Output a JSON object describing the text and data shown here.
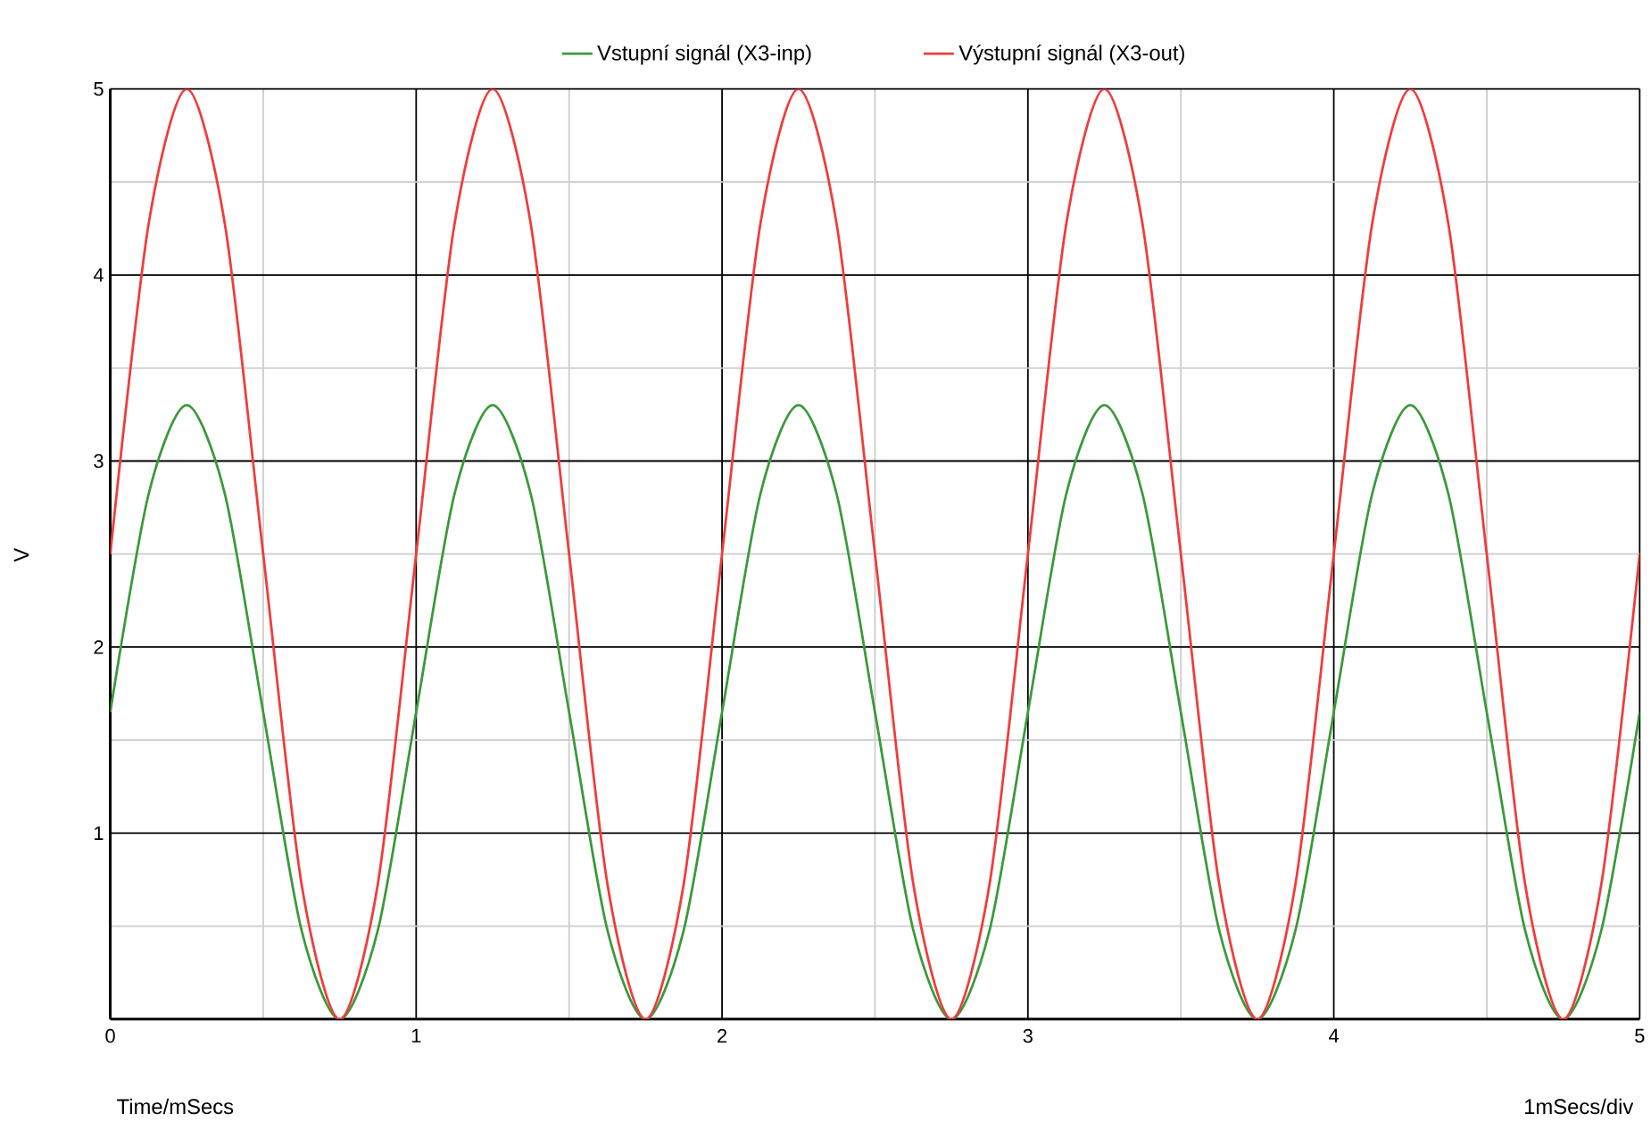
{
  "chart_data": {
    "type": "line",
    "xlabel": "Time/mSecs",
    "ylabel": "V",
    "annotations": [
      "1mSecs/div"
    ],
    "legend": "top",
    "grid": true,
    "xlim": [
      0,
      5
    ],
    "ylim": [
      0,
      5
    ],
    "xticks": [
      0,
      {
        "value": 0.5,
        "label": null
      },
      1,
      {
        "value": 1.5,
        "label": null
      },
      2,
      {
        "value": 2.5,
        "label": null
      },
      3,
      {
        "value": 3.5,
        "label": null
      },
      4,
      {
        "value": 4.5,
        "label": null
      },
      5
    ],
    "yticks": [
      {
        "value": 0,
        "label": null
      },
      {
        "value": 0.5,
        "label": null
      },
      1,
      {
        "value": 1.5,
        "label": null
      },
      2,
      {
        "value": 2.5,
        "label": null
      },
      3,
      {
        "value": 3.5,
        "label": null
      },
      4,
      {
        "value": 4.5,
        "label": null
      },
      5
    ],
    "x": [
      0,
      0.125,
      0.25,
      0.375,
      0.5,
      0.625,
      0.75,
      0.875,
      1,
      1.125,
      1.25,
      1.375,
      1.5,
      1.625,
      1.75,
      1.875,
      2,
      2.125,
      2.25,
      2.375,
      2.5,
      2.625,
      2.75,
      2.875,
      3,
      3.125,
      3.25,
      3.375,
      3.5,
      3.625,
      3.75,
      3.875,
      4,
      4.125,
      4.25,
      4.375,
      4.5,
      4.625,
      4.75,
      4.875,
      5
    ],
    "series": [
      {
        "name": "Vstupní signál (X3-inp)",
        "color": "#3a9a3a",
        "values": [
          1.65,
          2.82,
          3.3,
          2.82,
          1.65,
          0.48,
          0,
          0.48,
          1.65,
          2.82,
          3.3,
          2.82,
          1.65,
          0.48,
          0,
          0.48,
          1.65,
          2.82,
          3.3,
          2.82,
          1.65,
          0.48,
          0,
          0.48,
          1.65,
          2.82,
          3.3,
          2.82,
          1.65,
          0.48,
          0,
          0.48,
          1.65,
          2.82,
          3.3,
          2.82,
          1.65,
          0.48,
          0,
          0.48,
          1.65
        ]
      },
      {
        "name": "Výstupní signál (X3-out)",
        "color": "#f03c3c",
        "values": [
          2.5,
          4.27,
          5,
          4.27,
          2.5,
          0.73,
          0,
          0.73,
          2.5,
          4.27,
          5,
          4.27,
          2.5,
          0.73,
          0,
          0.73,
          2.5,
          4.27,
          5,
          4.27,
          2.5,
          0.73,
          0,
          0.73,
          2.5,
          4.27,
          5,
          4.27,
          2.5,
          0.73,
          0,
          0.73,
          2.5,
          4.27,
          5,
          4.27,
          2.5,
          0.73,
          0,
          0.73,
          2.5
        ]
      }
    ]
  }
}
